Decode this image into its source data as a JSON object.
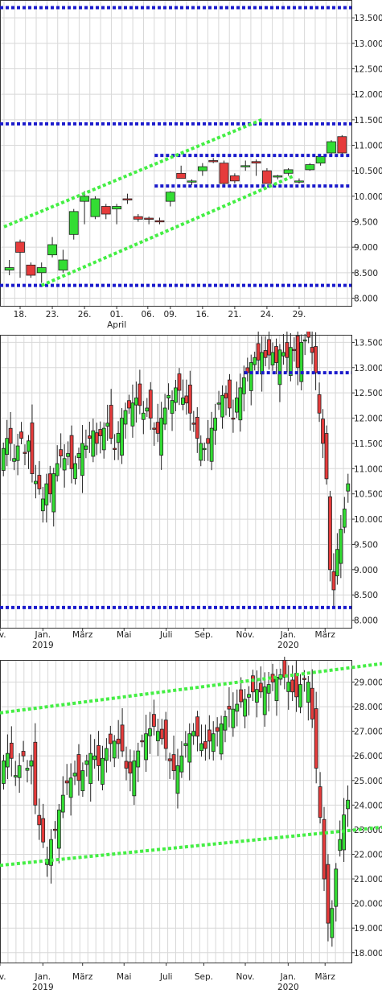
{
  "colors": {
    "up": "#33dd33",
    "down": "#e63b3b",
    "blue_line": "#1a1acc",
    "green_line": "#44ee44",
    "grid": "#d8d8d8",
    "border": "#333333"
  },
  "chart_data": [
    {
      "type": "candlestick",
      "ylim": [
        7.85,
        13.85
      ],
      "yticks": [
        8.0,
        8.5,
        9.0,
        9.5,
        10.0,
        10.5,
        11.0,
        11.5,
        12.0,
        12.5,
        13.0,
        13.5
      ],
      "ytick_labels": [
        "8.000",
        "8.500",
        "9.000",
        "9.500",
        "10.000",
        "10.500",
        "11.000",
        "11.500",
        "12.000",
        "12.500",
        "13.000",
        "13.500"
      ],
      "x_labels": [
        {
          "i": 1,
          "label": "18."
        },
        {
          "i": 4,
          "label": "23."
        },
        {
          "i": 7,
          "label": "26."
        },
        {
          "i": 10,
          "label": "01.",
          "sub": "April"
        },
        {
          "i": 12.9,
          "label": "06."
        },
        {
          "i": 15,
          "label": "09."
        },
        {
          "i": 18,
          "label": "16."
        },
        {
          "i": 21,
          "label": "21."
        },
        {
          "i": 24,
          "label": "24."
        },
        {
          "i": 27,
          "label": "29."
        }
      ],
      "candles": [
        {
          "o": 8.55,
          "h": 8.75,
          "l": 8.45,
          "c": 8.6
        },
        {
          "o": 9.1,
          "h": 9.15,
          "l": 8.4,
          "c": 8.9
        },
        {
          "o": 8.65,
          "h": 8.7,
          "l": 8.4,
          "c": 8.45
        },
        {
          "o": 8.5,
          "h": 8.7,
          "l": 8.3,
          "c": 8.6
        },
        {
          "o": 8.85,
          "h": 9.2,
          "l": 8.8,
          "c": 9.05
        },
        {
          "o": 8.55,
          "h": 8.95,
          "l": 8.5,
          "c": 8.75
        },
        {
          "o": 9.25,
          "h": 9.75,
          "l": 9.15,
          "c": 9.7
        },
        {
          "o": 9.9,
          "h": 10.1,
          "l": 9.45,
          "c": 10.0
        },
        {
          "o": 9.6,
          "h": 10.0,
          "l": 9.55,
          "c": 9.95
        },
        {
          "o": 9.8,
          "h": 9.85,
          "l": 9.55,
          "c": 9.65
        },
        {
          "o": 9.75,
          "h": 9.85,
          "l": 9.45,
          "c": 9.8
        },
        {
          "o": 9.95,
          "h": 10.05,
          "l": 9.85,
          "c": 9.93
        },
        {
          "o": 9.6,
          "h": 9.65,
          "l": 9.5,
          "c": 9.55
        },
        {
          "o": 9.57,
          "h": 9.6,
          "l": 9.45,
          "c": 9.55
        },
        {
          "o": 9.52,
          "h": 9.58,
          "l": 9.45,
          "c": 9.5
        },
        {
          "o": 9.9,
          "h": 10.1,
          "l": 9.8,
          "c": 10.08
        },
        {
          "o": 10.45,
          "h": 10.6,
          "l": 10.35,
          "c": 10.35
        },
        {
          "o": 10.28,
          "h": 10.33,
          "l": 10.22,
          "c": 10.3
        },
        {
          "o": 10.5,
          "h": 10.65,
          "l": 10.4,
          "c": 10.58
        },
        {
          "o": 10.7,
          "h": 10.75,
          "l": 10.65,
          "c": 10.68
        },
        {
          "o": 10.65,
          "h": 10.7,
          "l": 10.2,
          "c": 10.25
        },
        {
          "o": 10.4,
          "h": 10.45,
          "l": 10.25,
          "c": 10.3
        },
        {
          "o": 10.6,
          "h": 10.7,
          "l": 10.5,
          "c": 10.6
        },
        {
          "o": 10.68,
          "h": 10.72,
          "l": 10.4,
          "c": 10.65
        },
        {
          "o": 10.5,
          "h": 10.55,
          "l": 10.25,
          "c": 10.25
        },
        {
          "o": 10.38,
          "h": 10.42,
          "l": 10.33,
          "c": 10.4
        },
        {
          "o": 10.45,
          "h": 10.55,
          "l": 10.4,
          "c": 10.52
        },
        {
          "o": 10.3,
          "h": 10.35,
          "l": 10.25,
          "c": 10.3
        },
        {
          "o": 10.52,
          "h": 10.65,
          "l": 10.5,
          "c": 10.62
        },
        {
          "o": 10.65,
          "h": 10.8,
          "l": 10.6,
          "c": 10.78
        },
        {
          "o": 10.85,
          "h": 11.1,
          "l": 10.8,
          "c": 11.07
        },
        {
          "o": 11.17,
          "h": 11.2,
          "l": 10.8,
          "c": 10.85
        }
      ],
      "hlines": [
        13.7,
        11.42,
        10.8,
        10.2,
        8.25
      ],
      "hline_spans": [
        [
          0,
          1
        ],
        [
          0,
          1
        ],
        [
          0.44,
          1
        ],
        [
          0.44,
          1
        ],
        [
          0,
          1
        ]
      ],
      "trendlines": [
        {
          "x1": -0.5,
          "y1": 9.4,
          "x2": 23.5,
          "y2": 11.5
        },
        {
          "x1": 3.0,
          "y1": 8.25,
          "x2": 26.5,
          "y2": 10.4
        }
      ]
    },
    {
      "type": "candlestick",
      "ylim": [
        7.85,
        13.65
      ],
      "yticks": [
        8.0,
        8.5,
        9.0,
        9.5,
        10.0,
        10.5,
        11.0,
        11.5,
        12.0,
        12.5,
        13.0,
        13.5
      ],
      "ytick_labels": [
        "8.000",
        "8.500",
        "9.000",
        "9.500",
        "10.000",
        "10.500",
        "11.000",
        "11.500",
        "12.000",
        "12.500",
        "13.000",
        "13.500"
      ],
      "x_labels": [
        {
          "frac": 0.0,
          "label": "ov."
        },
        {
          "frac": 0.122,
          "label": "Jan.",
          "sub": "2019"
        },
        {
          "frac": 0.235,
          "label": "März"
        },
        {
          "frac": 0.353,
          "label": "Mai"
        },
        {
          "frac": 0.473,
          "label": "Juli"
        },
        {
          "frac": 0.58,
          "label": "Sep."
        },
        {
          "frac": 0.698,
          "label": "Nov."
        },
        {
          "frac": 0.82,
          "label": "Jan.",
          "sub": "2020"
        },
        {
          "frac": 0.925,
          "label": "März"
        }
      ],
      "closes": [
        11.4,
        11.6,
        11.5,
        11.2,
        11.45,
        11.6,
        11.3,
        11.55,
        10.9,
        10.75,
        10.6,
        10.4,
        10.7,
        10.5,
        10.9,
        11.1,
        11.25,
        11.2,
        11.3,
        11.0,
        11.1,
        11.3,
        11.5,
        11.45,
        11.6,
        11.75,
        11.5,
        11.65,
        11.8,
        11.9,
        11.6,
        11.4,
        11.7,
        12.0,
        12.15,
        12.2,
        12.3,
        12.4,
        12.25,
        12.1,
        12.2,
        12.0,
        11.8,
        11.7,
        12.0,
        12.2,
        12.45,
        12.35,
        12.6,
        12.55,
        12.4,
        12.3,
        12.1,
        11.9,
        11.6,
        11.5,
        11.4,
        11.5,
        11.8,
        12.0,
        12.3,
        12.45,
        12.4,
        12.2,
        12.0,
        12.4,
        12.6,
        12.8,
        12.9,
        13.1,
        13.2,
        13.15,
        13.3,
        13.2,
        13.25,
        13.3,
        13.1,
        13.35,
        13.3,
        13.2,
        13.4,
        13.35,
        13.0,
        13.5,
        13.55,
        13.6,
        13.3,
        12.9,
        12.1,
        11.5,
        10.8,
        9.0,
        8.6,
        9.4,
        9.8,
        10.2,
        10.7
      ],
      "hlines": [
        12.9,
        8.25
      ],
      "hline_spans": [
        [
          0.695,
          1
        ],
        [
          0,
          1
        ]
      ]
    },
    {
      "type": "candlestick",
      "ylim": [
        17.6,
        29.9
      ],
      "yticks": [
        18,
        19,
        20,
        21,
        22,
        23,
        24,
        25,
        26,
        27,
        28,
        29
      ],
      "ytick_labels": [
        "18.000",
        "19.000",
        "20.000",
        "21.000",
        "22.000",
        "23.000",
        "24.000",
        "25.000",
        "26.000",
        "27.000",
        "28.000",
        "29.000"
      ],
      "x_labels": [
        {
          "frac": 0.0,
          "label": "ov."
        },
        {
          "frac": 0.122,
          "label": "Jan.",
          "sub": "2019"
        },
        {
          "frac": 0.235,
          "label": "März"
        },
        {
          "frac": 0.353,
          "label": "Mai"
        },
        {
          "frac": 0.473,
          "label": "Juli"
        },
        {
          "frac": 0.58,
          "label": "Sep."
        },
        {
          "frac": 0.698,
          "label": "Nov."
        },
        {
          "frac": 0.82,
          "label": "Jan.",
          "sub": "2020"
        },
        {
          "frac": 0.925,
          "label": "März"
        }
      ],
      "closes": [
        25.8,
        26.1,
        25.9,
        25.2,
        25.6,
        26.0,
        25.5,
        25.8,
        24.0,
        23.2,
        22.5,
        21.8,
        22.6,
        23.0,
        23.8,
        24.4,
        24.9,
        25.1,
        25.3,
        25.0,
        25.4,
        25.8,
        26.1,
        26.0,
        25.6,
        25.9,
        26.3,
        26.5,
        26.6,
        26.5,
        26.2,
        25.5,
        25.3,
        25.8,
        26.2,
        26.6,
        26.9,
        27.1,
        27.2,
        27.0,
        26.7,
        26.3,
        25.8,
        25.4,
        25.6,
        26.0,
        26.5,
        26.9,
        27.0,
        26.8,
        26.5,
        26.3,
        26.6,
        26.9,
        27.0,
        27.3,
        27.6,
        27.9,
        27.9,
        28.1,
        28.2,
        28.3,
        28.5,
        28.6,
        28.7,
        28.6,
        28.8,
        28.9,
        29.0,
        29.2,
        29.3,
        29.2,
        29.0,
        28.6,
        28.4,
        28.9,
        29.1,
        29.0,
        27.5,
        25.5,
        23.5,
        21.0,
        19.2,
        19.8,
        21.4,
        22.6,
        23.6,
        24.2
      ],
      "trendlines": [
        {
          "xf1": 0.0,
          "y1": 27.75,
          "xf2": 1.0,
          "y2": 29.75
        },
        {
          "xf1": 0.0,
          "y1": 21.55,
          "xf2": 1.0,
          "y2": 23.1
        }
      ]
    }
  ]
}
